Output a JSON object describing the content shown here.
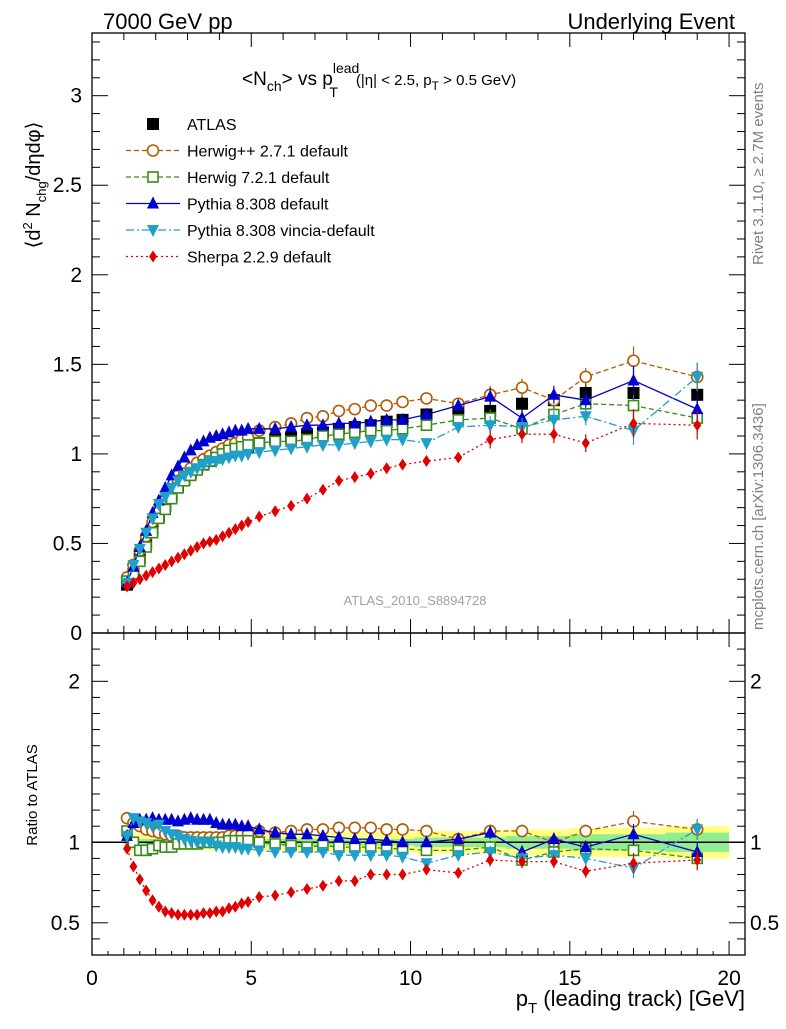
{
  "header": {
    "left": "7000 GeV pp",
    "right": "Underlying Event"
  },
  "side_labels": {
    "rivet": "Rivet 3.1.10, ≥ 2.7M events",
    "mcplots": "mcplots.cern.ch [arXiv:1306.3436]"
  },
  "watermark": "ATLAS_2010_S8894728",
  "title": {
    "part1": "<N",
    "sub1": "ch",
    "part2": "> vs p",
    "sup": "lead",
    "sub2": "T",
    "cut1": "(|η| < 2.5, p",
    "cut_sub": "T",
    "cut2": " > 0.5 GeV)"
  },
  "xaxis": {
    "label_main": "p",
    "label_sub": "T",
    "label_rest": " (leading track) [GeV]",
    "ticks": [
      "0",
      "5",
      "10",
      "15",
      "20"
    ],
    "range": [
      0,
      20.5
    ]
  },
  "ylabel_top": {
    "a": "⟨d",
    "sup": "2",
    "b": " N",
    "sub": "chg",
    "c": "/dηdφ⟩"
  },
  "ylabel_bottom": "Ratio to ATLAS",
  "colors": {
    "ATLAS": "#000000",
    "herwigpp": "#b35900",
    "herwig7": "#3a8a1a",
    "pythia": "#0000d0",
    "vincia": "#1fa0c8",
    "sherpa": "#e00000",
    "band_outer": "#ffff80",
    "band_inner": "#90ee90"
  },
  "chart_data": [
    {
      "type": "scatter",
      "panel": "main",
      "ylim": [
        0,
        3.35
      ],
      "yticks": [
        "0",
        "0.5",
        "1",
        "1.5",
        "2",
        "2.5",
        "3"
      ],
      "xlim": [
        0,
        20.5
      ],
      "x": [
        1.1,
        1.3,
        1.5,
        1.7,
        1.9,
        2.1,
        2.3,
        2.5,
        2.7,
        2.9,
        3.1,
        3.3,
        3.5,
        3.7,
        3.9,
        4.1,
        4.3,
        4.5,
        4.7,
        4.9,
        5.25,
        5.75,
        6.25,
        6.75,
        7.25,
        7.75,
        8.25,
        8.75,
        9.25,
        9.75,
        10.5,
        11.5,
        12.5,
        13.5,
        14.5,
        15.5,
        17.0,
        19.0
      ],
      "series": [
        {
          "name": "ATLAS",
          "key": "ATLAS",
          "style": "square",
          "values": [
            0.27,
            0.33,
            0.42,
            0.5,
            0.58,
            0.65,
            0.71,
            0.77,
            0.82,
            0.86,
            0.89,
            0.92,
            0.94,
            0.96,
            0.98,
            1.0,
            1.01,
            1.02,
            1.03,
            1.04,
            1.06,
            1.08,
            1.09,
            1.11,
            1.12,
            1.14,
            1.15,
            1.16,
            1.18,
            1.19,
            1.22,
            1.25,
            1.24,
            1.28,
            1.3,
            1.34,
            1.34,
            1.33
          ]
        },
        {
          "name": "Herwig++ 2.7.1 default",
          "key": "herwigpp",
          "style": "circle",
          "values": [
            0.31,
            0.38,
            0.46,
            0.54,
            0.62,
            0.69,
            0.75,
            0.8,
            0.85,
            0.89,
            0.92,
            0.95,
            0.97,
            0.99,
            1.01,
            1.03,
            1.05,
            1.06,
            1.08,
            1.09,
            1.13,
            1.15,
            1.17,
            1.2,
            1.21,
            1.24,
            1.25,
            1.27,
            1.27,
            1.29,
            1.31,
            1.28,
            1.33,
            1.37,
            1.3,
            1.43,
            1.52,
            1.43
          ]
        },
        {
          "name": "Herwig 7.2.1 default",
          "key": "herwig7",
          "style": "open-square",
          "values": [
            0.29,
            0.33,
            0.4,
            0.48,
            0.56,
            0.64,
            0.69,
            0.75,
            0.81,
            0.85,
            0.88,
            0.91,
            0.94,
            0.96,
            0.98,
            1.0,
            1.02,
            1.03,
            1.04,
            1.05,
            1.06,
            1.07,
            1.07,
            1.08,
            1.1,
            1.11,
            1.12,
            1.13,
            1.13,
            1.14,
            1.16,
            1.19,
            1.2,
            1.14,
            1.22,
            1.28,
            1.27,
            1.2
          ]
        },
        {
          "name": "Pythia 8.308 default",
          "key": "pythia",
          "style": "triangle",
          "values": [
            0.28,
            0.37,
            0.48,
            0.57,
            0.67,
            0.74,
            0.81,
            0.88,
            0.93,
            0.98,
            1.02,
            1.05,
            1.07,
            1.09,
            1.1,
            1.11,
            1.12,
            1.13,
            1.13,
            1.14,
            1.14,
            1.14,
            1.15,
            1.16,
            1.16,
            1.17,
            1.17,
            1.18,
            1.19,
            1.19,
            1.22,
            1.27,
            1.32,
            1.2,
            1.33,
            1.3,
            1.41,
            1.25
          ]
        },
        {
          "name": "Pythia 8.308 vincia-default",
          "key": "vincia",
          "style": "down-triangle",
          "values": [
            0.28,
            0.38,
            0.47,
            0.56,
            0.64,
            0.72,
            0.76,
            0.81,
            0.85,
            0.88,
            0.9,
            0.92,
            0.94,
            0.96,
            0.96,
            0.97,
            0.98,
            0.99,
            0.99,
            1.0,
            1.01,
            1.02,
            1.03,
            1.04,
            1.05,
            1.05,
            1.06,
            1.07,
            1.08,
            1.08,
            1.06,
            1.15,
            1.16,
            1.15,
            1.19,
            1.21,
            1.13,
            1.43
          ]
        },
        {
          "name": "Sherpa 2.2.9 default",
          "key": "sherpa",
          "style": "diamond",
          "values": [
            0.26,
            0.28,
            0.3,
            0.32,
            0.34,
            0.36,
            0.38,
            0.4,
            0.42,
            0.44,
            0.46,
            0.48,
            0.5,
            0.51,
            0.52,
            0.54,
            0.56,
            0.58,
            0.6,
            0.62,
            0.65,
            0.68,
            0.71,
            0.75,
            0.8,
            0.85,
            0.87,
            0.89,
            0.92,
            0.94,
            0.96,
            0.98,
            1.08,
            1.11,
            1.11,
            1.06,
            1.17,
            1.16
          ]
        }
      ]
    },
    {
      "type": "scatter",
      "panel": "ratio",
      "ylim": [
        0.3,
        2.3
      ],
      "yticks": [
        "0.5",
        "1",
        "2"
      ],
      "xlim": [
        0,
        20.5
      ],
      "x": [
        1.1,
        1.3,
        1.5,
        1.7,
        1.9,
        2.1,
        2.3,
        2.5,
        2.7,
        2.9,
        3.1,
        3.3,
        3.5,
        3.7,
        3.9,
        4.1,
        4.3,
        4.5,
        4.7,
        4.9,
        5.25,
        5.75,
        6.25,
        6.75,
        7.25,
        7.75,
        8.25,
        8.75,
        9.25,
        9.75,
        10.5,
        11.5,
        12.5,
        13.5,
        14.5,
        15.5,
        17.0,
        19.0
      ],
      "band_inner_halfwidth": [
        0.02,
        0.02,
        0.02,
        0.02,
        0.02,
        0.02,
        0.02,
        0.02,
        0.02,
        0.02,
        0.02,
        0.02,
        0.02,
        0.02,
        0.02,
        0.02,
        0.02,
        0.02,
        0.02,
        0.02,
        0.02,
        0.02,
        0.02,
        0.02,
        0.02,
        0.02,
        0.02,
        0.02,
        0.02,
        0.02,
        0.03,
        0.03,
        0.03,
        0.04,
        0.04,
        0.05,
        0.05,
        0.06
      ],
      "band_outer_halfwidth": [
        0.05,
        0.05,
        0.05,
        0.05,
        0.05,
        0.05,
        0.05,
        0.05,
        0.05,
        0.05,
        0.05,
        0.05,
        0.05,
        0.05,
        0.05,
        0.05,
        0.05,
        0.05,
        0.05,
        0.05,
        0.05,
        0.05,
        0.05,
        0.05,
        0.05,
        0.06,
        0.06,
        0.06,
        0.06,
        0.06,
        0.07,
        0.07,
        0.07,
        0.08,
        0.08,
        0.09,
        0.09,
        0.1
      ],
      "series": [
        {
          "name": "Herwig++ 2.7.1 default",
          "key": "herwigpp",
          "style": "circle",
          "values": [
            1.15,
            1.12,
            1.1,
            1.08,
            1.07,
            1.06,
            1.05,
            1.04,
            1.04,
            1.03,
            1.03,
            1.03,
            1.03,
            1.03,
            1.03,
            1.03,
            1.04,
            1.04,
            1.05,
            1.05,
            1.07,
            1.06,
            1.07,
            1.08,
            1.08,
            1.09,
            1.09,
            1.09,
            1.08,
            1.08,
            1.07,
            1.02,
            1.07,
            1.07,
            1.0,
            1.07,
            1.13,
            1.08
          ]
        },
        {
          "name": "Herwig 7.2.1 default",
          "key": "herwig7",
          "style": "open-square",
          "values": [
            1.07,
            1.0,
            0.95,
            0.95,
            0.96,
            0.98,
            0.97,
            0.97,
            0.99,
            0.99,
            0.99,
            0.99,
            1.0,
            1.0,
            1.0,
            1.0,
            1.01,
            1.01,
            1.01,
            1.01,
            1.0,
            0.99,
            0.98,
            0.97,
            0.98,
            0.97,
            0.97,
            0.97,
            0.96,
            0.96,
            0.95,
            0.95,
            0.97,
            0.89,
            0.94,
            0.96,
            0.95,
            0.9
          ]
        },
        {
          "name": "Pythia 8.308 default",
          "key": "pythia",
          "style": "triangle",
          "values": [
            1.04,
            1.12,
            1.14,
            1.14,
            1.15,
            1.14,
            1.14,
            1.14,
            1.13,
            1.14,
            1.15,
            1.14,
            1.14,
            1.14,
            1.12,
            1.11,
            1.11,
            1.11,
            1.1,
            1.1,
            1.08,
            1.06,
            1.05,
            1.05,
            1.04,
            1.03,
            1.02,
            1.02,
            1.01,
            1.0,
            1.0,
            1.02,
            1.06,
            0.94,
            1.02,
            0.97,
            1.05,
            0.94
          ]
        },
        {
          "name": "Pythia 8.308 vincia-default",
          "key": "vincia",
          "style": "down-triangle",
          "values": [
            1.04,
            1.15,
            1.13,
            1.12,
            1.1,
            1.11,
            1.07,
            1.05,
            1.04,
            1.02,
            1.01,
            1.0,
            1.0,
            1.0,
            0.98,
            0.97,
            0.97,
            0.97,
            0.96,
            0.96,
            0.95,
            0.94,
            0.94,
            0.94,
            0.94,
            0.92,
            0.92,
            0.92,
            0.92,
            0.91,
            0.87,
            0.92,
            0.94,
            0.9,
            0.92,
            0.9,
            0.84,
            1.08
          ]
        },
        {
          "name": "Sherpa 2.2.9 default",
          "key": "sherpa",
          "style": "diamond",
          "values": [
            0.96,
            0.85,
            0.77,
            0.7,
            0.64,
            0.6,
            0.57,
            0.56,
            0.55,
            0.55,
            0.55,
            0.55,
            0.56,
            0.56,
            0.57,
            0.57,
            0.59,
            0.6,
            0.62,
            0.63,
            0.66,
            0.67,
            0.69,
            0.71,
            0.73,
            0.76,
            0.76,
            0.8,
            0.8,
            0.8,
            0.83,
            0.81,
            0.89,
            0.88,
            0.88,
            0.82,
            0.87,
            0.89
          ]
        }
      ]
    }
  ]
}
